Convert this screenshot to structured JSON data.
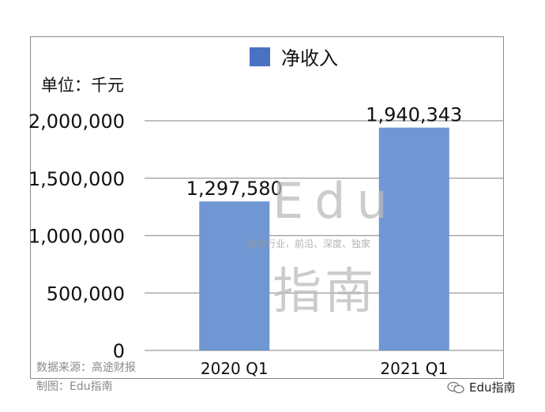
{
  "chart_data": {
    "type": "bar",
    "categories": [
      "2020 Q1",
      "2021 Q1"
    ],
    "series": [
      {
        "name": "净收入",
        "values": [
          1297580,
          1940343
        ],
        "color": "#7096d4"
      }
    ],
    "data_labels": [
      "1,297,580",
      "1,940,343"
    ],
    "yticks": [
      "0",
      "500,000",
      "1,000,000",
      "1,500,000",
      "2,000,000"
    ],
    "ylim": [
      0,
      2000000
    ],
    "unit_label": "单位：千元",
    "grid": true,
    "legend_position": "top"
  },
  "legend": {
    "label": "净收入",
    "color": "#4a72c4"
  },
  "footer": {
    "source": "数据来源：高途财报",
    "maker": "制图：Edu指南"
  },
  "watermark": {
    "edu": "Edu",
    "zhinan": "指南",
    "tagline": "教育行业，前沿、深度、独家"
  },
  "brand": {
    "label": "Edu指南",
    "icon": "wechat-icon"
  }
}
